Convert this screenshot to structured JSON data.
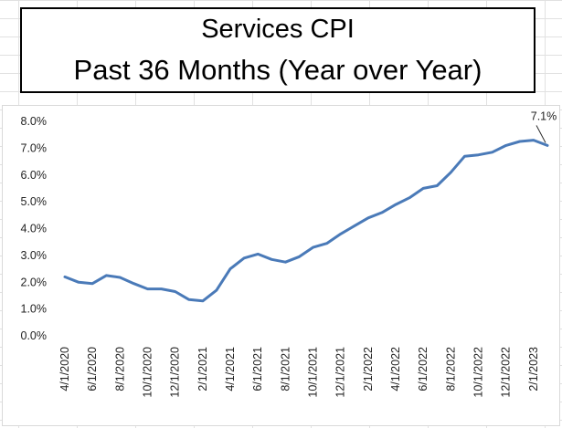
{
  "header": {
    "title": "Services CPI",
    "subtitle": "Past 36 Months (Year over Year)"
  },
  "chart_data": {
    "type": "line",
    "title": "Services CPI",
    "subtitle": "Past 36 Months (Year over Year)",
    "xlabel": "",
    "ylabel": "",
    "ylim": [
      0,
      8
    ],
    "y_ticks": [
      "0.0%",
      "1.0%",
      "2.0%",
      "3.0%",
      "4.0%",
      "5.0%",
      "6.0%",
      "7.0%",
      "8.0%"
    ],
    "grid": false,
    "legend": "none",
    "line_color": "#4a7ab8",
    "x": [
      "4/1/2020",
      "5/1/2020",
      "6/1/2020",
      "7/1/2020",
      "8/1/2020",
      "9/1/2020",
      "10/1/2020",
      "11/1/2020",
      "12/1/2020",
      "1/1/2021",
      "2/1/2021",
      "3/1/2021",
      "4/1/2021",
      "5/1/2021",
      "6/1/2021",
      "7/1/2021",
      "8/1/2021",
      "9/1/2021",
      "10/1/2021",
      "11/1/2021",
      "12/1/2021",
      "1/1/2022",
      "2/1/2022",
      "3/1/2022",
      "4/1/2022",
      "5/1/2022",
      "6/1/2022",
      "7/1/2022",
      "8/1/2022",
      "9/1/2022",
      "10/1/2022",
      "11/1/2022",
      "12/1/2022",
      "1/1/2023",
      "2/1/2023",
      "3/1/2023"
    ],
    "x_tick_labels": [
      "4/1/2020",
      "6/1/2020",
      "8/1/2020",
      "10/1/2020",
      "12/1/2020",
      "2/1/2021",
      "4/1/2021",
      "6/1/2021",
      "8/1/2021",
      "10/1/2021",
      "12/1/2021",
      "2/1/2022",
      "4/1/2022",
      "6/1/2022",
      "8/1/2022",
      "10/1/2022",
      "12/1/2022",
      "2/1/2023"
    ],
    "series": [
      {
        "name": "Services CPI YoY",
        "values": [
          2.2,
          2.0,
          1.95,
          2.25,
          2.18,
          1.95,
          1.75,
          1.75,
          1.65,
          1.35,
          1.3,
          1.7,
          2.5,
          2.9,
          3.05,
          2.85,
          2.75,
          2.95,
          3.3,
          3.45,
          3.8,
          4.1,
          4.4,
          4.6,
          4.9,
          5.15,
          5.5,
          5.6,
          6.1,
          6.7,
          6.75,
          6.85,
          7.1,
          7.25,
          7.3,
          7.1
        ]
      }
    ],
    "annotations": [
      {
        "text": "7.1%",
        "x": "3/1/2023",
        "y": 7.1
      }
    ]
  }
}
